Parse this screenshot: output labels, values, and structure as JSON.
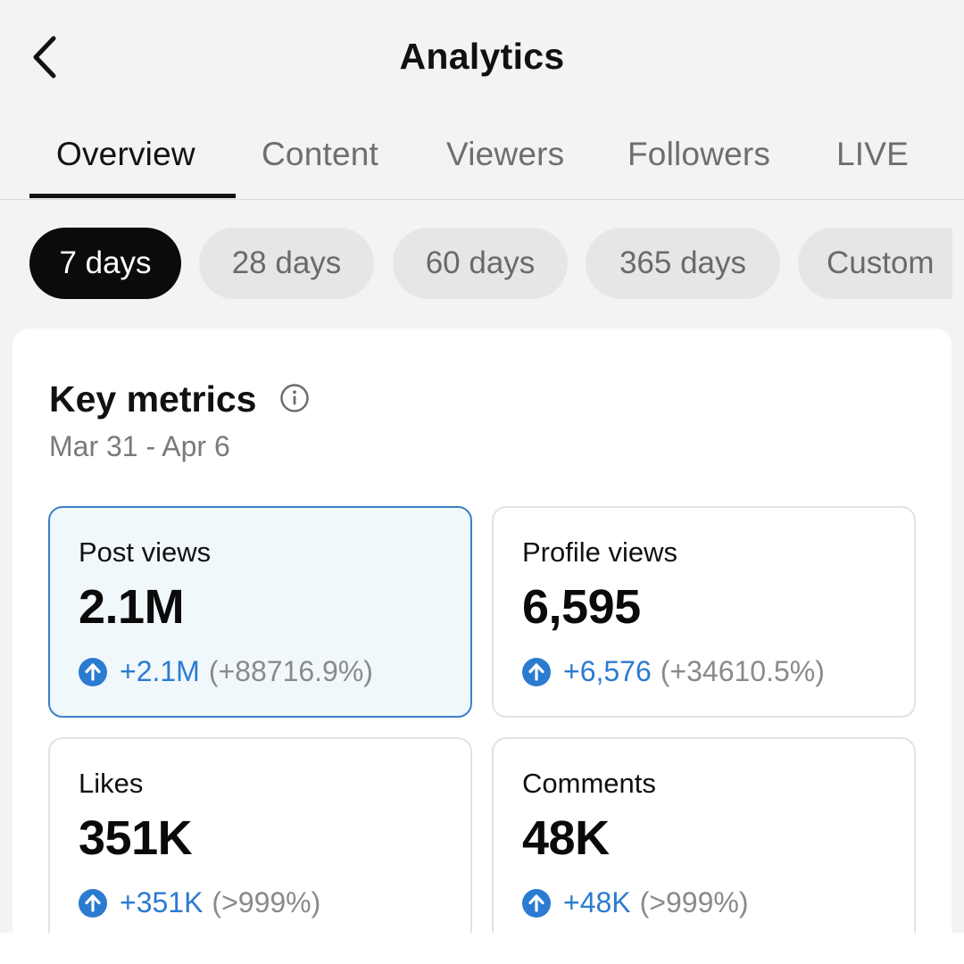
{
  "header": {
    "title": "Analytics"
  },
  "tabs": [
    "Overview",
    "Content",
    "Viewers",
    "Followers",
    "LIVE"
  ],
  "periods": [
    "7 days",
    "28 days",
    "60 days",
    "365 days",
    "Custom"
  ],
  "key_metrics": {
    "title": "Key metrics",
    "date_range": "Mar 31 - Apr 6",
    "metrics": [
      {
        "label": "Post views",
        "value": "2.1M",
        "delta": "+2.1M",
        "percent": "(+88716.9%)"
      },
      {
        "label": "Profile views",
        "value": "6,595",
        "delta": "+6,576",
        "percent": "(+34610.5%)"
      },
      {
        "label": "Likes",
        "value": "351K",
        "delta": "+351K",
        "percent": "(>999%)"
      },
      {
        "label": "Comments",
        "value": "48K",
        "delta": "+48K",
        "percent": "(>999%)"
      }
    ]
  },
  "colors": {
    "accent_blue": "#2b7bd1",
    "selected_card_bg": "#f1f8fc",
    "active_chip": "#0b0b0b"
  },
  "icons": {
    "back": "chevron-left-icon",
    "info": "info-circle-icon",
    "trend": "arrow-up-circle-icon"
  }
}
